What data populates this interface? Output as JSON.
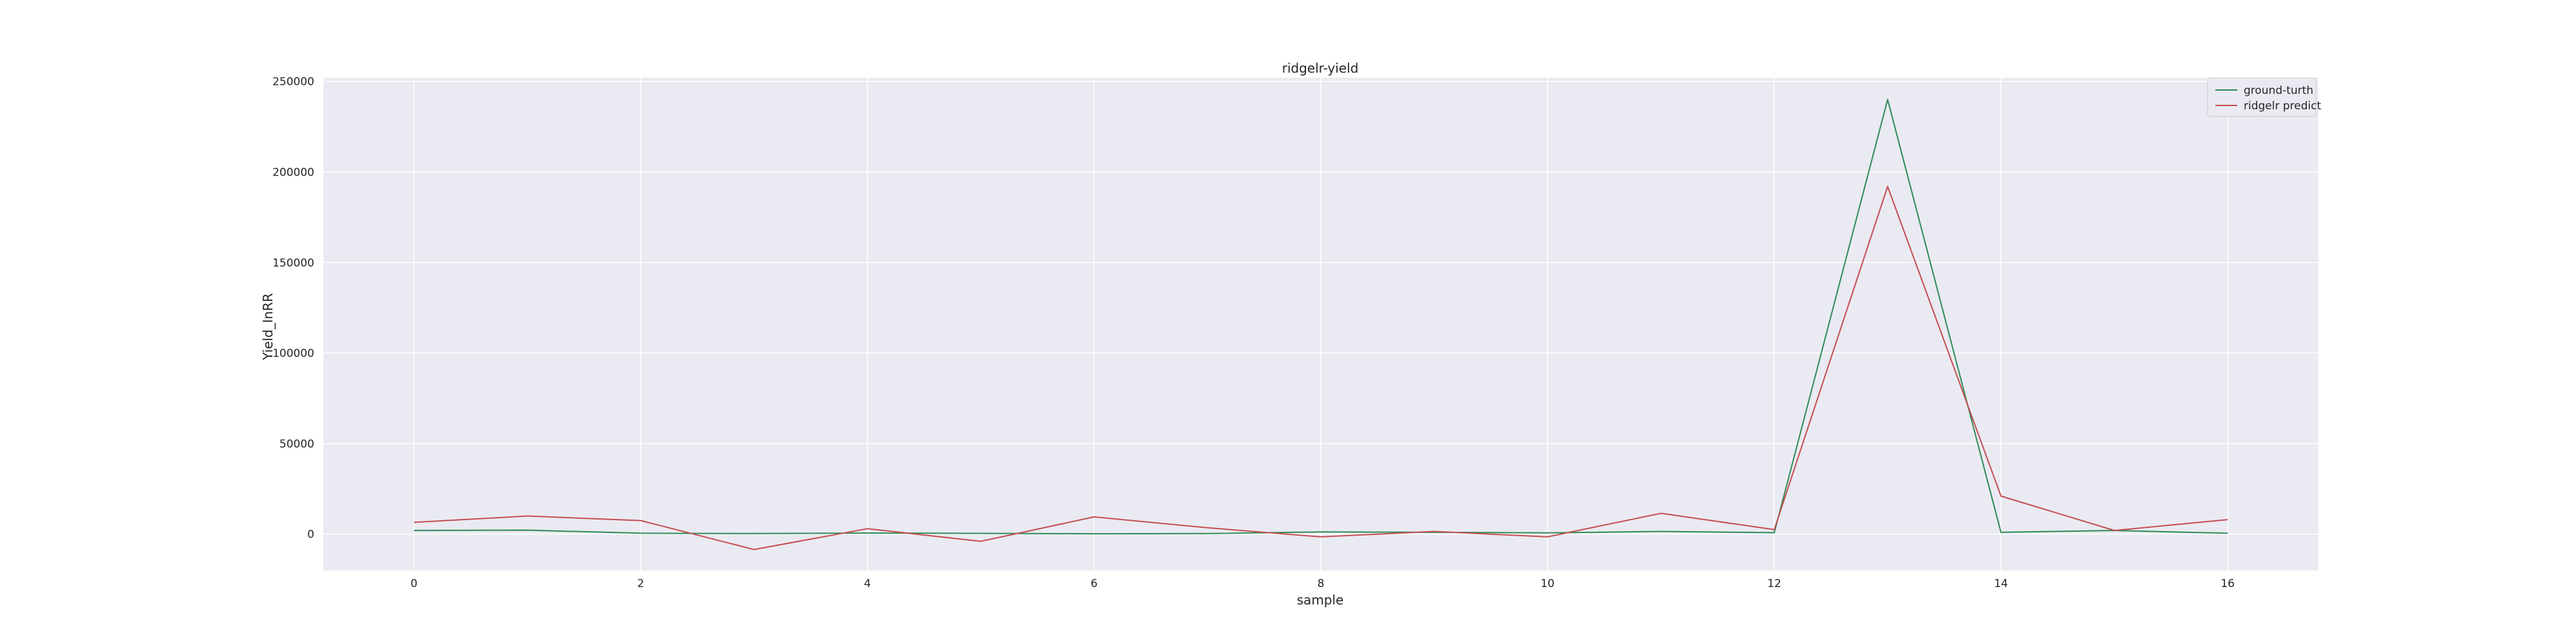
{
  "chart_data": {
    "type": "line",
    "title": "ridgelr-yield",
    "xlabel": "sample",
    "ylabel": "Yield_InRR",
    "x": [
      0,
      1,
      2,
      3,
      4,
      5,
      6,
      7,
      8,
      9,
      10,
      11,
      12,
      13,
      14,
      15,
      16
    ],
    "xlim": [
      -0.8,
      16.8
    ],
    "ylim": [
      -20000,
      252000
    ],
    "xticks": [
      0,
      2,
      4,
      6,
      8,
      10,
      12,
      14,
      16
    ],
    "yticks": [
      0,
      50000,
      100000,
      150000,
      200000,
      250000
    ],
    "grid": true,
    "legend_position": "upper right",
    "background_color": "#eaeaf2",
    "grid_color": "#ffffff",
    "series": [
      {
        "name": "ground-turth",
        "color": "#2e8b57",
        "values": [
          2000,
          2200,
          500,
          300,
          600,
          400,
          200,
          300,
          1200,
          1000,
          700,
          1500,
          800,
          240000,
          1000,
          2000,
          500
        ]
      },
      {
        "name": "ridgelr predict",
        "color": "#c44e52",
        "values": [
          6500,
          10000,
          7500,
          -8500,
          3000,
          -4000,
          9500,
          3500,
          -1500,
          1500,
          -1500,
          11500,
          2500,
          192000,
          21000,
          2000,
          8000
        ]
      }
    ]
  }
}
